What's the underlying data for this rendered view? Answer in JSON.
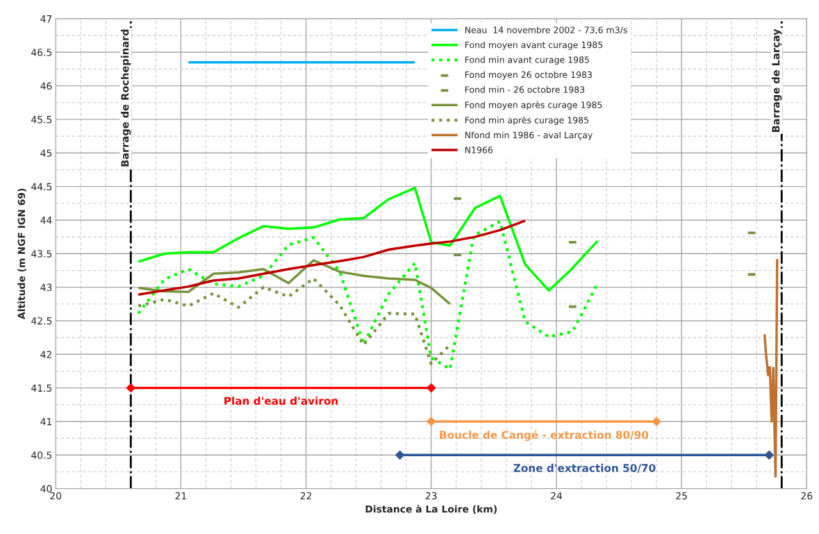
{
  "chart_data": {
    "type": "line",
    "xlabel": "Distance à La Loire (km)",
    "ylabel": "Altitude (m NGF IGN 69)",
    "xlim": [
      20,
      26
    ],
    "xticks": [
      20,
      21,
      22,
      23,
      24,
      25,
      26
    ],
    "ylim": [
      40,
      47
    ],
    "yticks": [
      40,
      40.5,
      41,
      41.5,
      42,
      42.5,
      43,
      43.5,
      44,
      44.5,
      45,
      45.5,
      46,
      46.5,
      47
    ],
    "grid": true,
    "legend": "top",
    "series": [
      {
        "name": "Neau  14 novembre 2002 - 73,6 m3/s",
        "color": "#00b0f0",
        "x": [
          21.06,
          22.87
        ],
        "values": [
          46.35,
          46.35
        ]
      },
      {
        "name": "Fond moyen avant curage 1985",
        "color": "#00ff00",
        "x": [
          20.66,
          20.87,
          21.06,
          21.26,
          21.46,
          21.66,
          21.86,
          22.06,
          22.27,
          22.46,
          22.66,
          22.87,
          23.0,
          23.15,
          23.35,
          23.55,
          23.75,
          23.94,
          24.11,
          24.33
        ],
        "values": [
          43.38,
          43.5,
          43.52,
          43.52,
          43.73,
          43.91,
          43.87,
          43.89,
          44.01,
          44.03,
          44.31,
          44.48,
          43.67,
          43.62,
          44.18,
          44.36,
          43.34,
          42.95,
          43.25,
          43.69
        ]
      },
      {
        "name": "Fond min avant curage 1985",
        "color": "#00ff00",
        "line_style": "dotted",
        "x": [
          20.66,
          20.87,
          21.06,
          21.26,
          21.46,
          21.66,
          21.86,
          22.06,
          22.27,
          22.46,
          22.66,
          22.87,
          23.0,
          23.15,
          23.34,
          23.55,
          23.75,
          23.94,
          24.13,
          24.33
        ],
        "values": [
          42.61,
          43.12,
          43.27,
          43.05,
          43.01,
          43.17,
          43.63,
          43.74,
          43.23,
          42.15,
          42.9,
          43.36,
          41.95,
          41.78,
          43.77,
          43.98,
          42.49,
          42.26,
          42.34,
          43.06
        ]
      },
      {
        "name": "Fond moyen 26 octobre 1983",
        "type": "scatter",
        "marker": "square",
        "color": "#77933c",
        "x": [
          23.21,
          24.13,
          25.56
        ],
        "values": [
          44.32,
          43.67,
          43.81
        ]
      },
      {
        "name": "Fond min - 26 octobre 1983",
        "type": "scatter",
        "marker": "square",
        "color": "#77933c",
        "x": [
          23.21,
          24.13,
          25.56
        ],
        "values": [
          43.48,
          42.71,
          43.19
        ]
      },
      {
        "name": "Fond moyen après curage 1985",
        "color": "#77933c",
        "x": [
          20.66,
          20.87,
          21.06,
          21.26,
          21.46,
          21.66,
          21.86,
          22.06,
          22.27,
          22.46,
          22.66,
          22.87,
          23.0,
          23.15
        ],
        "values": [
          42.99,
          42.94,
          42.93,
          43.2,
          43.22,
          43.27,
          43.06,
          43.4,
          43.23,
          43.17,
          43.13,
          43.11,
          42.99,
          42.75
        ]
      },
      {
        "name": "Fond min après curage 1985",
        "color": "#77933c",
        "line_style": "dotted",
        "x": [
          20.66,
          20.87,
          21.06,
          21.26,
          21.46,
          21.66,
          21.86,
          22.06,
          22.27,
          22.46,
          22.66,
          22.87,
          23.0,
          23.15
        ],
        "values": [
          42.72,
          42.82,
          42.72,
          42.91,
          42.7,
          43.0,
          42.86,
          43.13,
          42.73,
          42.14,
          42.61,
          42.6,
          41.86,
          42.14
        ]
      },
      {
        "name": "Nfond min 1986 - aval Larçay",
        "color": "#c0702f",
        "x": [
          25.663,
          25.674,
          25.692,
          25.705,
          25.72,
          25.733,
          25.751,
          25.764
        ],
        "values": [
          42.3,
          42.02,
          41.69,
          41.81,
          41.0,
          41.8,
          40.18,
          43.42
        ]
      },
      {
        "name": "N1966",
        "color": "#c00000",
        "x": [
          20.66,
          21.06,
          21.26,
          21.46,
          21.66,
          21.86,
          22.06,
          22.27,
          22.46,
          22.66,
          22.87,
          23.0,
          23.15,
          23.35,
          23.55,
          23.75
        ],
        "values": [
          42.89,
          43.01,
          43.1,
          43.13,
          43.2,
          43.27,
          43.33,
          43.39,
          43.45,
          43.56,
          43.62,
          43.65,
          43.68,
          43.75,
          43.85,
          43.99
        ]
      },
      {
        "name": "Plan d'eau d'aviron",
        "marker": "diamond",
        "color": "#ff0000",
        "x": [
          20.6,
          23.0
        ],
        "values": [
          41.5,
          41.5
        ]
      },
      {
        "name": "Boucle de Cangé - extraction 80/90",
        "marker": "diamond",
        "color": "#f79646",
        "x": [
          23.0,
          24.8
        ],
        "values": [
          41.0,
          41.0
        ]
      },
      {
        "name": "Zone d'extraction 50/70",
        "marker": "diamond",
        "color": "#2f5597",
        "x": [
          22.75,
          25.7
        ],
        "values": [
          40.5,
          40.5
        ]
      }
    ],
    "ref_lines": [
      {
        "axis": "x",
        "value": 20.6,
        "label": "Barrage de Rochepinard",
        "color": "#000000",
        "line_style": "dashdot"
      },
      {
        "axis": "x",
        "value": 25.8,
        "label": "Barrage de Larçay",
        "color": "#000000",
        "line_style": "dashdot"
      }
    ]
  }
}
